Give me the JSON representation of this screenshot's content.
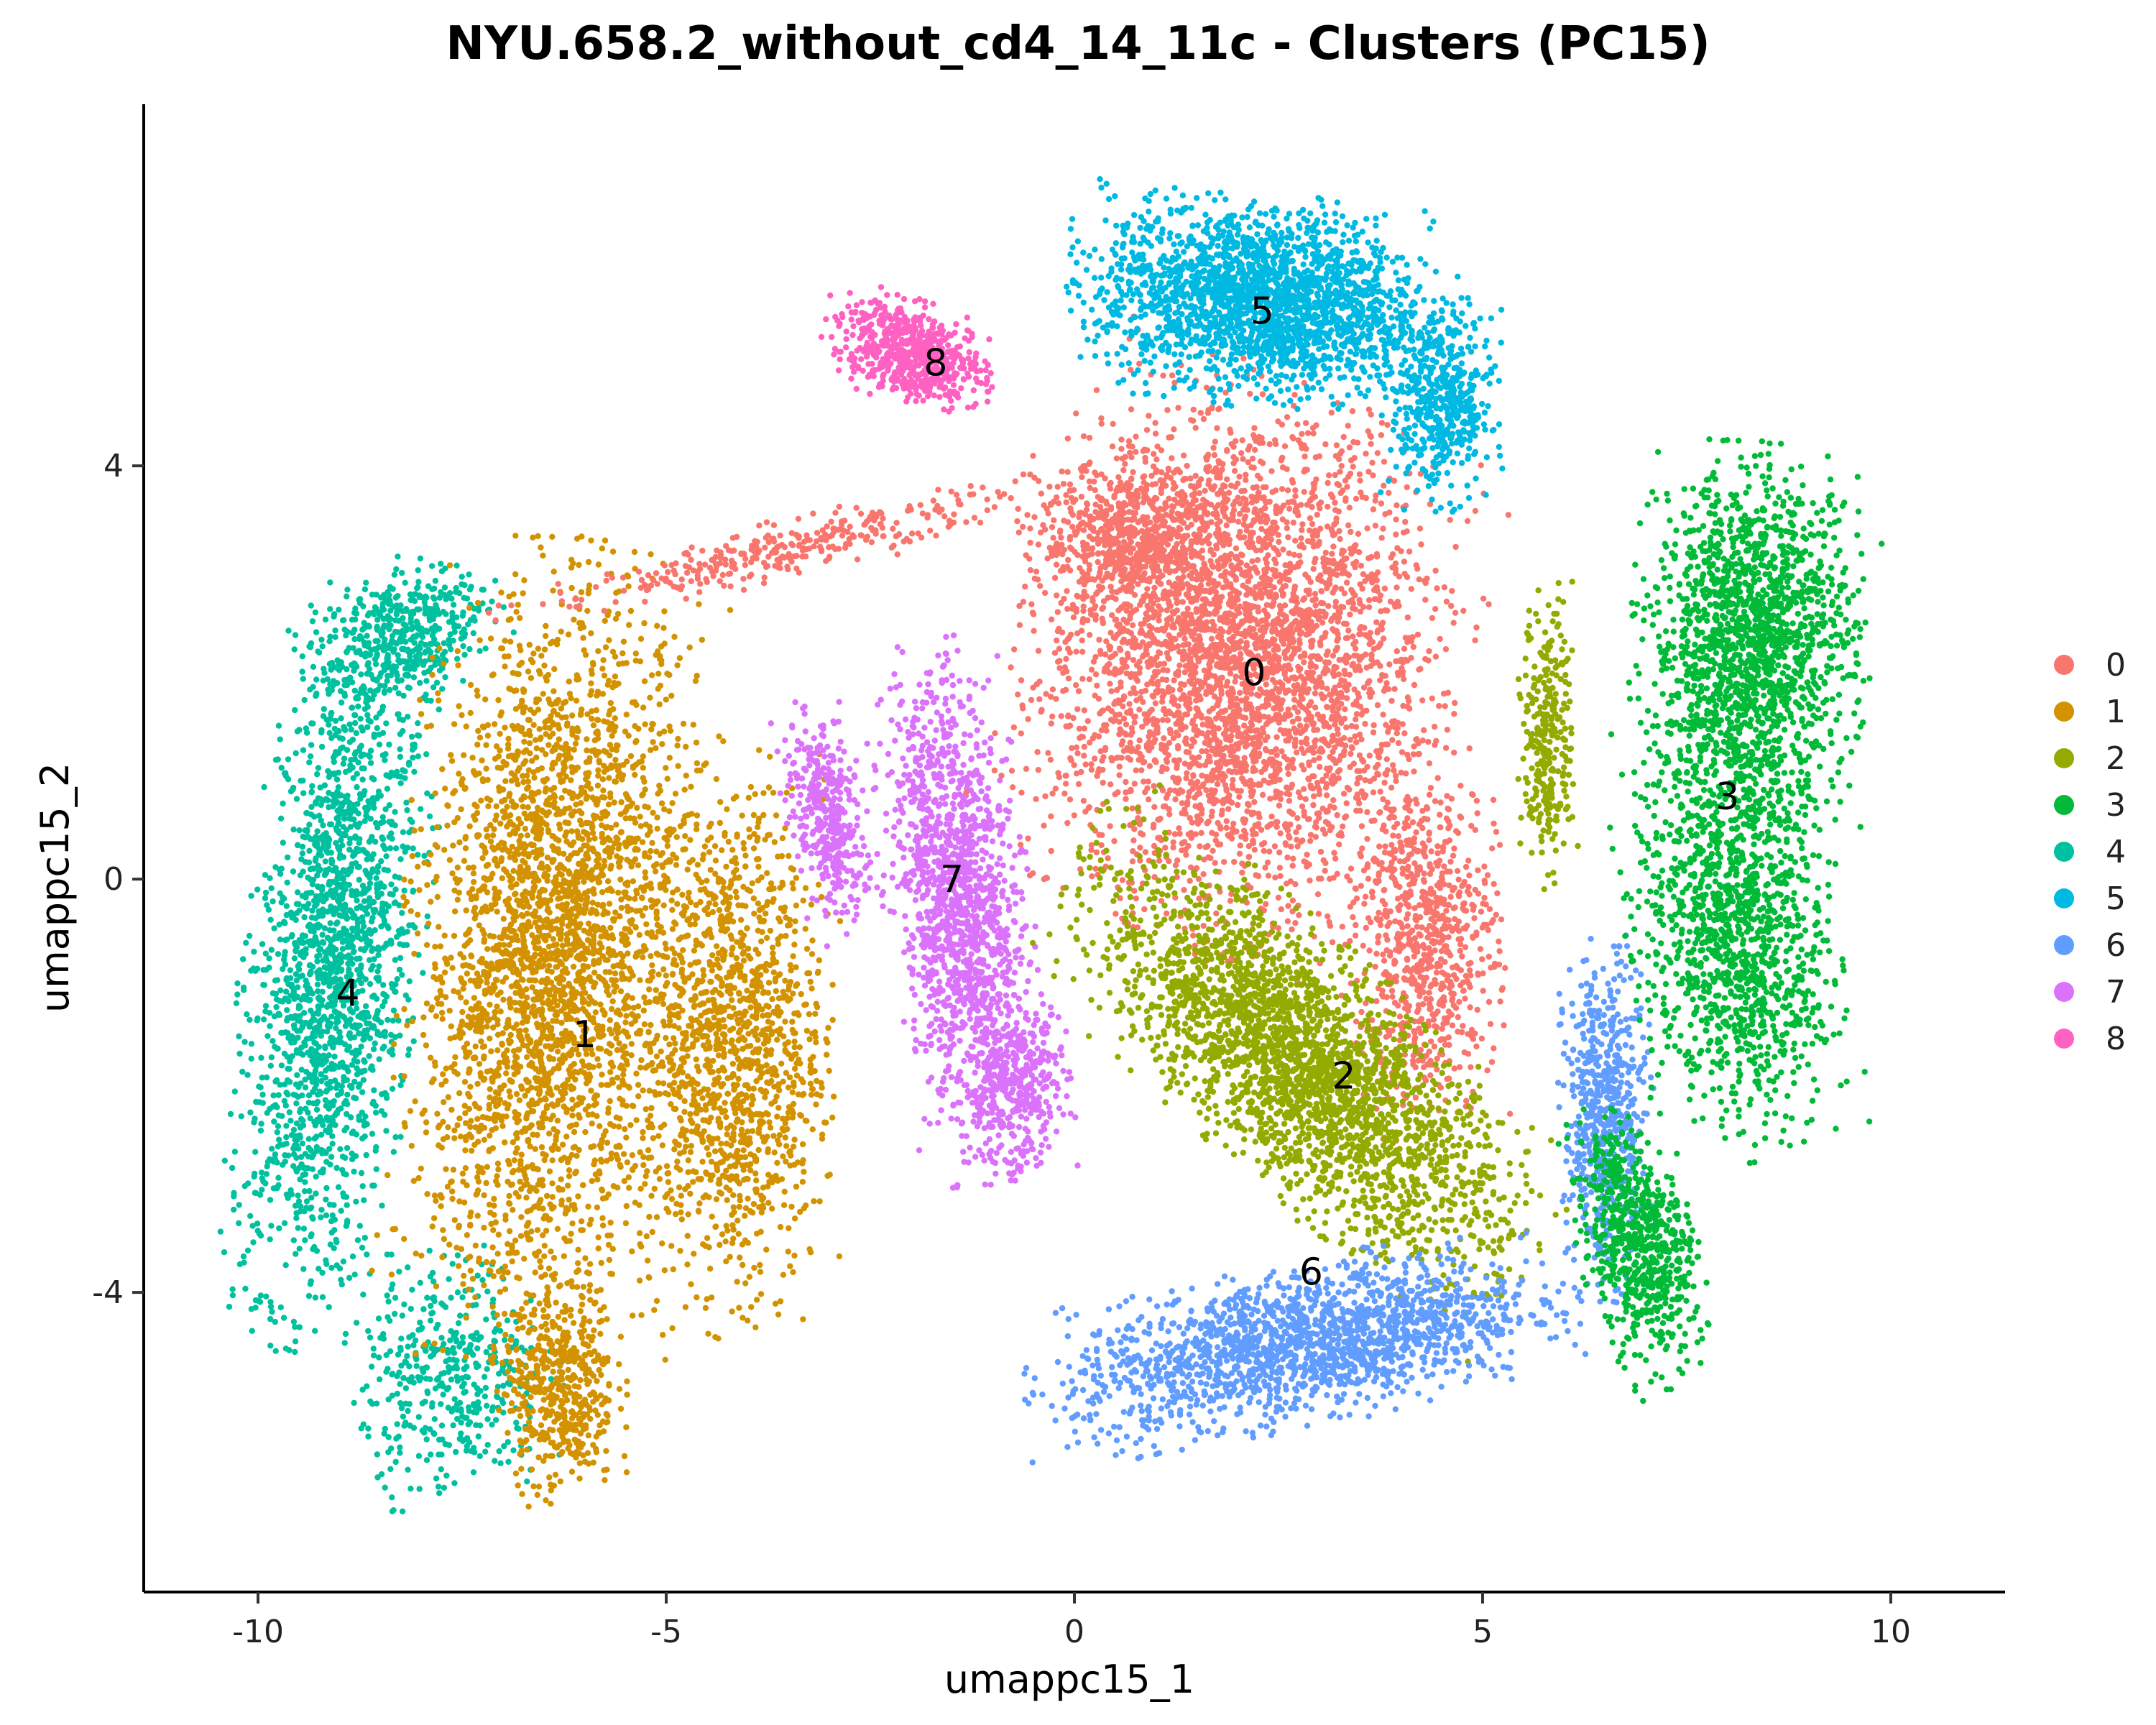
{
  "chart_data": {
    "type": "scatter",
    "title": "NYU.658.2_without_cd4_14_11c - Clusters (PC15)",
    "xlabel": "umappc15_1",
    "ylabel": "umappc15_2",
    "xlim": [
      -11.4,
      11.4
    ],
    "ylim": [
      -6.9,
      7.5
    ],
    "xticks": [
      -10,
      -5,
      0,
      5,
      10
    ],
    "xtick_labels": [
      "-10",
      "-5",
      "0",
      "5",
      "10"
    ],
    "yticks": [
      -4,
      0,
      4
    ],
    "ytick_labels": [
      "-4",
      "0",
      "4"
    ],
    "grid": false,
    "legend_position": "right",
    "clusters": [
      {
        "id": "0",
        "label": "0",
        "color": "#F8766D",
        "label_x": 2.2,
        "label_y": 2.0
      },
      {
        "id": "1",
        "label": "1",
        "color": "#D39200",
        "label_x": -6.0,
        "label_y": -1.5
      },
      {
        "id": "2",
        "label": "2",
        "color": "#93AA00",
        "label_x": 3.3,
        "label_y": -1.9
      },
      {
        "id": "3",
        "label": "3",
        "color": "#00BA38",
        "label_x": 8.0,
        "label_y": 0.8
      },
      {
        "id": "4",
        "label": "4",
        "color": "#00C19F",
        "label_x": -8.9,
        "label_y": -1.1
      },
      {
        "id": "5",
        "label": "5",
        "color": "#00B9E3",
        "label_x": 2.3,
        "label_y": 5.5
      },
      {
        "id": "6",
        "label": "6",
        "color": "#619CFF",
        "label_x": 2.9,
        "label_y": -3.8
      },
      {
        "id": "7",
        "label": "7",
        "color": "#DB72FB",
        "label_x": -1.5,
        "label_y": 0.0
      },
      {
        "id": "8",
        "label": "8",
        "color": "#FF61C3",
        "label_x": -1.7,
        "label_y": 5.0
      }
    ]
  }
}
